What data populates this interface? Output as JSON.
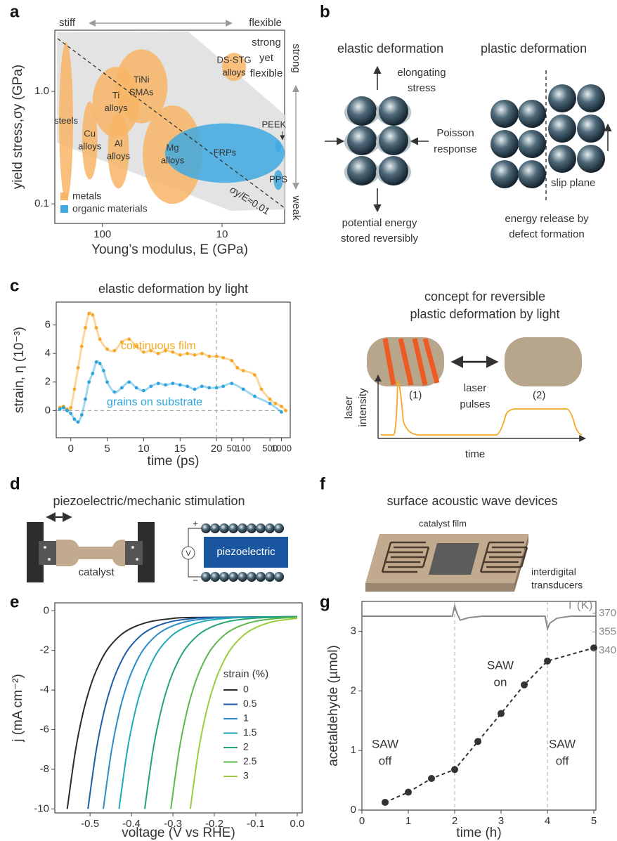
{
  "panel_labels": [
    "a",
    "b",
    "c",
    "d",
    "e",
    "f",
    "g"
  ],
  "chart_data": [
    {
      "type": "region",
      "x_label": "Young’s modulus, E (GPa)",
      "y_label": "yield stress,σy (GPa)",
      "xscale": "log",
      "yscale": "log",
      "xlim": [
        250,
        3
      ],
      "ylim": [
        0.067,
        3.5
      ],
      "xticks": [
        100,
        10
      ],
      "yticks": [
        {
          "value": 1,
          "label": "1.0"
        },
        0.1
      ],
      "top_arrow": [
        "stiff",
        "flexible"
      ],
      "right_arrow": [
        "strong",
        "weak"
      ],
      "annotation": [
        "strong",
        "yet",
        "flexible"
      ],
      "guide_label": "σy/E≈0.01",
      "legend": "lower left",
      "series": [
        {
          "name": "metals",
          "color": "#f8b566",
          "regions": [
            {
              "label": [
                "steels"
              ],
              "E": [
                230,
                176
              ],
              "sigma": [
                2.74,
                0.107
              ]
            },
            {
              "label": [
                "Cu",
                "alloys"
              ],
              "E": [
                148,
                110
              ],
              "sigma": [
                0.81,
                0.165
              ]
            },
            {
              "label": [
                "Al",
                "alloys"
              ],
              "E": [
                90,
                60
              ],
              "sigma": [
                0.65,
                0.137
              ]
            },
            {
              "label": [
                "Ti",
                "alloys"
              ],
              "E": [
                121,
                49
              ],
              "sigma": [
                1.65,
                0.39
              ]
            },
            {
              "label": [
                "TiNi",
                "SMAs"
              ],
              "E": [
                78,
                28.6
              ],
              "sigma": [
                2.37,
                0.52
              ]
            },
            {
              "label": [
                "Mg",
                "alloys"
              ],
              "E": [
                46,
                14.6
              ],
              "sigma": [
                0.75,
                0.1
              ]
            },
            {
              "label": [
                "DS-STG",
                "alloys"
              ],
              "E": [
                10,
                6.3
              ],
              "sigma": [
                2.2,
                1.24
              ]
            }
          ]
        },
        {
          "name": "organic materials",
          "color": "#3fa9e0",
          "regions": [
            {
              "label": [
                "FRPs"
              ],
              "E": [
                30,
                3
              ],
              "sigma": [
                0.52,
                0.154
              ]
            },
            {
              "label": [
                "PEEK"
              ],
              "E": [
                3.6,
                3.2
              ],
              "sigma": [
                0.365,
                0.29
              ]
            },
            {
              "label": [
                "PPS"
              ],
              "E": [
                3.7,
                3.1
              ],
              "sigma": [
                0.2,
                0.133
              ]
            }
          ]
        }
      ]
    },
    {
      "type": "scatter",
      "title": "elastic deformation by light",
      "x_label": "time (ps)",
      "y_label": "strain, η (10⁻³)",
      "xscale": "linear-log",
      "xscale_break": 20,
      "xlim": [
        -2,
        1700
      ],
      "ylim": [
        -1.9,
        7.6
      ],
      "xticks": [
        0,
        5,
        10,
        15,
        20,
        50,
        100,
        500,
        1000
      ],
      "yticks": [
        0,
        2,
        4,
        6
      ],
      "zero_line": true,
      "series": [
        {
          "name": "continuous film",
          "color": "#f5a623",
          "x": [
            -1.5,
            -1,
            -0.5,
            0,
            0.5,
            1,
            1.5,
            2,
            2.5,
            3,
            3.5,
            4,
            5,
            6,
            7,
            8,
            9,
            10,
            11,
            12,
            13,
            14,
            15,
            16,
            17,
            18,
            19,
            20,
            30,
            50,
            70,
            100,
            200,
            300,
            500,
            700,
            1000,
            1300
          ],
          "values": [
            0.2,
            0.3,
            0.1,
            0.2,
            1.5,
            3,
            4.5,
            5.8,
            6.8,
            6.7,
            5.8,
            5,
            4.3,
            4.2,
            4.8,
            5,
            4.5,
            4.1,
            4.2,
            4,
            4.2,
            4.1,
            3.9,
            4,
            3.9,
            4,
            3.8,
            3.8,
            3.7,
            3.5,
            3,
            2.8,
            2.5,
            1.5,
            0.8,
            0.5,
            0.3,
            0
          ]
        },
        {
          "name": "grains on substrate",
          "color": "#2ea3dc",
          "x": [
            -1.5,
            -1,
            -0.5,
            0,
            0.5,
            1,
            1.5,
            2,
            2.5,
            3,
            3.5,
            4,
            4.5,
            5,
            6,
            7,
            8,
            9,
            10,
            11,
            12,
            13,
            14,
            15,
            16,
            17,
            18,
            19,
            20,
            30,
            50,
            100,
            200,
            500,
            1000
          ],
          "values": [
            0.1,
            0.2,
            0,
            -0.2,
            -0.6,
            -0.8,
            -0.3,
            0.8,
            2,
            2.6,
            3.4,
            3.3,
            2.8,
            2,
            1.3,
            1.6,
            2,
            1.6,
            1.4,
            1.7,
            1.9,
            1.8,
            1.9,
            1.8,
            1.7,
            1.5,
            1.7,
            1.6,
            1.6,
            1.7,
            1.9,
            1.5,
            1,
            0.5,
            -0.1
          ]
        }
      ]
    },
    {
      "type": "line",
      "x_label": "voltage (V vs RHE)",
      "y_label": "j (mA cm⁻²)",
      "xlim": [
        -0.585,
        0.012
      ],
      "ylim": [
        -10.2,
        0.4
      ],
      "xticks": [
        -0.5,
        -0.4,
        -0.3,
        -0.2,
        -0.1,
        {
          "value": 0,
          "label": "0.0"
        }
      ],
      "yticks": [
        0,
        -2,
        -4,
        -6,
        -8,
        -10
      ],
      "legend_title": "strain (%)",
      "legend": "lower right",
      "series": [
        {
          "name": "0",
          "color": "#2b2b2b",
          "x": [
            -0.555,
            -0.535,
            -0.515,
            -0.495,
            -0.475,
            -0.455,
            -0.425,
            -0.395,
            -0.355,
            -0.305,
            -0.255,
            0
          ],
          "values": [
            -10,
            -7.04,
            -4.99,
            -3.56,
            -2.57,
            -1.87,
            -1.21,
            -0.83,
            -0.55,
            -0.4,
            -0.34,
            -0.3
          ]
        },
        {
          "name": "0.5",
          "color": "#1b5ea8",
          "x": [
            -0.505,
            -0.485,
            -0.465,
            -0.445,
            -0.425,
            -0.405,
            -0.375,
            -0.345,
            -0.305,
            -0.255,
            -0.205,
            0
          ],
          "values": [
            -10,
            -7.04,
            -4.99,
            -3.56,
            -2.57,
            -1.87,
            -1.21,
            -0.83,
            -0.55,
            -0.4,
            -0.34,
            -0.3
          ]
        },
        {
          "name": "1",
          "color": "#2a8cca",
          "x": [
            -0.468,
            -0.448,
            -0.428,
            -0.408,
            -0.388,
            -0.368,
            -0.338,
            -0.308,
            -0.268,
            -0.218,
            -0.168,
            0
          ],
          "values": [
            -10,
            -7.04,
            -4.99,
            -3.56,
            -2.57,
            -1.87,
            -1.21,
            -0.83,
            -0.55,
            -0.4,
            -0.34,
            -0.3
          ]
        },
        {
          "name": "1.5",
          "color": "#1fa8b5",
          "x": [
            -0.43,
            -0.41,
            -0.39,
            -0.37,
            -0.35,
            -0.33,
            -0.3,
            -0.27,
            -0.23,
            -0.18,
            -0.13,
            0
          ],
          "values": [
            -10,
            -7.04,
            -4.99,
            -3.56,
            -2.57,
            -1.87,
            -1.21,
            -0.83,
            -0.55,
            -0.4,
            -0.34,
            -0.3
          ]
        },
        {
          "name": "2",
          "color": "#25a56d",
          "x": [
            -0.368,
            -0.348,
            -0.328,
            -0.308,
            -0.288,
            -0.268,
            -0.238,
            -0.208,
            -0.168,
            -0.118,
            -0.068,
            0
          ],
          "values": [
            -10,
            -7.04,
            -4.99,
            -3.56,
            -2.57,
            -1.87,
            -1.21,
            -0.83,
            -0.55,
            -0.4,
            -0.34,
            -0.3
          ]
        },
        {
          "name": "2.5",
          "color": "#5cb84a",
          "x": [
            -0.305,
            -0.285,
            -0.265,
            -0.245,
            -0.225,
            -0.205,
            -0.175,
            -0.145,
            -0.105,
            -0.055,
            0
          ],
          "values": [
            -10,
            -7.04,
            -4.99,
            -3.56,
            -2.57,
            -1.87,
            -1.21,
            -0.83,
            -0.55,
            -0.4,
            -0.33
          ]
        },
        {
          "name": "3",
          "color": "#9ccb3b",
          "x": [
            -0.258,
            -0.238,
            -0.218,
            -0.198,
            -0.178,
            -0.158,
            -0.128,
            -0.098,
            -0.058,
            -0.008,
            0
          ],
          "values": [
            -10,
            -7.04,
            -4.99,
            -3.56,
            -2.57,
            -1.87,
            -1.21,
            -0.83,
            -0.55,
            -0.4,
            -0.39
          ]
        }
      ]
    },
    {
      "type": "line",
      "x_label": "time (h)",
      "y_label": "acetaldehyde (µmol)",
      "xlim": [
        0,
        5.045
      ],
      "ylim": [
        0,
        3.5
      ],
      "y2lim": [
        211.5,
        379.6
      ],
      "xticks": [
        0,
        1,
        2,
        3,
        4,
        5
      ],
      "yticks": [
        0,
        1,
        2,
        3
      ],
      "y2ticks": [
        340,
        355,
        370
      ],
      "annotations": [
        [
          "SAW",
          "off"
        ],
        [
          "SAW",
          "on"
        ],
        [
          "SAW",
          "off"
        ]
      ],
      "series": [
        {
          "color": "#333333",
          "marker": "circle",
          "linestyle": "dashed",
          "x": [
            0.5,
            1,
            1.5,
            2,
            2.5,
            3,
            3.5,
            4,
            5
          ],
          "values": [
            0.13,
            0.3,
            0.53,
            0.68,
            1.15,
            1.62,
            2.1,
            2.5,
            2.72
          ]
        },
        {
          "name": "T (K)",
          "color": "#8a8a8a",
          "axis": "y2",
          "x": [
            0,
            1.95,
            2,
            2.05,
            2.12,
            2.3,
            2.6,
            3.95,
            4,
            4.05,
            4.2,
            4.5,
            5.04
          ],
          "values": [
            367.7,
            367.7,
            376,
            370,
            364.5,
            366.5,
            367.7,
            367.7,
            357.5,
            362,
            366,
            367.7,
            367.7
          ]
        }
      ]
    }
  ],
  "panel_b": {
    "elastic_title": "elastic deformation",
    "plastic_title": "plastic deformation",
    "stress": [
      "elongating",
      "stress"
    ],
    "poisson": [
      "Poisson",
      "response"
    ],
    "energy_stored": [
      "potential energy",
      "stored reversibly"
    ],
    "slip": "slip plane",
    "energy_release": [
      "energy release by",
      "defect formation"
    ]
  },
  "panel_c_concept": {
    "title": [
      "concept for reversible",
      "plastic deformation by light"
    ],
    "pulses": [
      "laser",
      "pulses"
    ],
    "y_label": [
      "laser",
      "intensity"
    ],
    "x_label": "time",
    "pulse_1": "(1)",
    "pulse_2": "(2)"
  },
  "panel_d": {
    "title": "piezoelectric/mechanic stimulation",
    "catalyst": "catalyst",
    "piezo": "piezoelectric",
    "volt": "V",
    "plus": "+",
    "minus": "−"
  },
  "panel_f": {
    "title": "surface acoustic wave devices",
    "film": "catalyst film",
    "transducers": [
      "interdigital",
      "transducers"
    ]
  }
}
